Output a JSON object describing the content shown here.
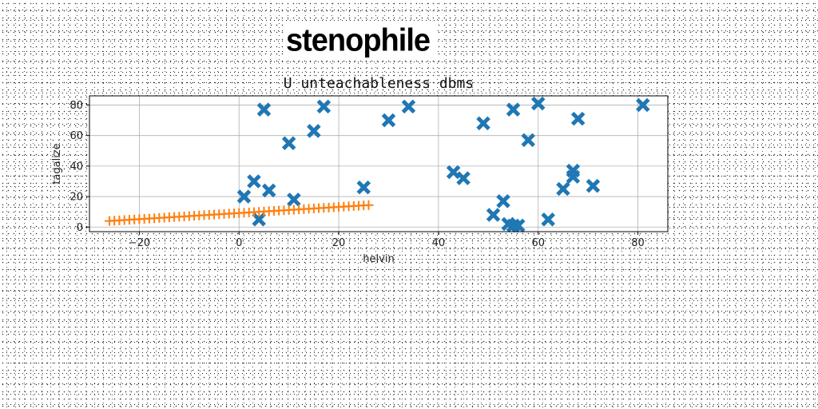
{
  "header": {
    "title": "stenophile"
  },
  "chart_data": {
    "type": "scatter",
    "title": "U unteachableness dbms",
    "xlabel": "helvin",
    "ylabel": "tagalize",
    "xlim": [
      -30,
      86
    ],
    "ylim": [
      -3,
      86
    ],
    "xticks": [
      -20,
      0,
      20,
      40,
      60,
      80
    ],
    "yticks": [
      0,
      20,
      40,
      60,
      80
    ],
    "xtick_labels": [
      "−20",
      "0",
      "20",
      "40",
      "60",
      "80"
    ],
    "ytick_labels": [
      "0",
      "20",
      "40",
      "60",
      "80"
    ],
    "grid": true,
    "series": [
      {
        "marker": "X",
        "color": "#1f77b4",
        "x": [
          1,
          3,
          5,
          6,
          10,
          11,
          15,
          17,
          4,
          25,
          30,
          34,
          43,
          45,
          49,
          51,
          53,
          54,
          55,
          56,
          55,
          58,
          60,
          62,
          65,
          67,
          67,
          68,
          71,
          81
        ],
        "y": [
          20,
          30,
          77,
          24,
          55,
          18,
          63,
          79,
          5,
          26,
          70,
          79,
          36,
          32,
          68,
          8,
          17,
          2,
          1,
          1,
          77,
          57,
          81,
          5,
          25,
          37,
          33,
          71,
          27,
          80
        ]
      },
      {
        "marker": "+",
        "color": "#ff7f0e",
        "x": [
          -26,
          -25,
          -24,
          -23,
          -22,
          -21,
          -20,
          -19,
          -18,
          -17,
          -16,
          -15,
          -14,
          -13,
          -12,
          -11,
          -10,
          -9,
          -8,
          -7,
          -6,
          -5,
          -4,
          -3,
          -2,
          -1,
          0,
          1,
          2,
          3,
          4,
          5,
          6,
          7,
          8,
          9,
          10,
          11,
          12,
          13,
          14,
          15,
          16,
          17,
          18,
          19,
          20,
          21,
          22,
          23,
          24,
          25,
          26
        ],
        "y": [
          4.0,
          4.2,
          4.4,
          4.6,
          4.8,
          5.0,
          5.2,
          5.4,
          5.6,
          5.8,
          6.0,
          6.2,
          6.4,
          6.6,
          6.8,
          7.0,
          7.2,
          7.4,
          7.6,
          7.8,
          8.0,
          8.2,
          8.4,
          8.6,
          8.8,
          9.0,
          9.2,
          9.4,
          9.6,
          9.8,
          10.0,
          10.2,
          10.4,
          10.6,
          10.8,
          11.0,
          11.2,
          11.4,
          11.6,
          11.8,
          12.0,
          12.2,
          12.4,
          12.6,
          12.8,
          13.0,
          13.2,
          13.4,
          13.6,
          13.8,
          14.0,
          14.2,
          14.4
        ]
      }
    ]
  }
}
